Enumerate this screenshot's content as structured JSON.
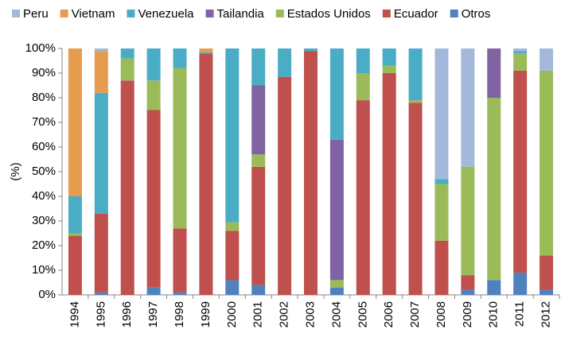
{
  "chart_data": {
    "type": "stacked-bar-100",
    "y_label": "(%)",
    "categories": [
      "1994",
      "1995",
      "1996",
      "1997",
      "1998",
      "1999",
      "2000",
      "2001",
      "2002",
      "2003",
      "2004",
      "2005",
      "2006",
      "2007",
      "2008",
      "2009",
      "2010",
      "2011",
      "2012"
    ],
    "series": [
      {
        "name": "Peru",
        "color": "#a4b8dc",
        "values": [
          0,
          1,
          0,
          0,
          0,
          0,
          0,
          0,
          0,
          0,
          0,
          0,
          0,
          0,
          53,
          48,
          0,
          1,
          9
        ]
      },
      {
        "name": "Vietnam",
        "color": "#e69b4f",
        "values": [
          60,
          17,
          0,
          0,
          0,
          1.5,
          0,
          0,
          0,
          0,
          0,
          0,
          0,
          0,
          0,
          0,
          0,
          0,
          0
        ]
      },
      {
        "name": "Venezuela",
        "color": "#4bacc6",
        "values": [
          15,
          49,
          4,
          13,
          8,
          0.5,
          70.5,
          15,
          11.5,
          1,
          37,
          10,
          7,
          21,
          2,
          0,
          0,
          1,
          0
        ]
      },
      {
        "name": "Tailandia",
        "color": "#8064a2",
        "values": [
          0,
          0,
          0,
          0,
          0,
          0,
          0,
          28,
          0,
          0,
          57,
          0,
          0,
          0,
          0,
          0,
          20,
          0,
          0
        ]
      },
      {
        "name": "Estados Unidos",
        "color": "#9bbb59",
        "values": [
          1,
          0,
          9,
          12,
          65,
          0,
          3.5,
          5,
          0,
          0,
          3,
          11,
          3,
          1,
          23,
          44,
          74,
          7,
          75
        ]
      },
      {
        "name": "Ecuador",
        "color": "#c0504d",
        "values": [
          24,
          32,
          87,
          72,
          26,
          98,
          20,
          48,
          88.5,
          99,
          0,
          79,
          90,
          78,
          22,
          6,
          0,
          82,
          14
        ]
      },
      {
        "name": "Otros",
        "color": "#4f81bd",
        "values": [
          0,
          1,
          0,
          3,
          1,
          0,
          6,
          4,
          0,
          0,
          3,
          0,
          0,
          0,
          0,
          2,
          6,
          9,
          2
        ]
      }
    ],
    "ylim": [
      0,
      100
    ],
    "yticks": [
      {
        "value": 0,
        "label": "0%"
      },
      {
        "value": 10,
        "label": "10%"
      },
      {
        "value": 20,
        "label": "20%"
      },
      {
        "value": 30,
        "label": "30%"
      },
      {
        "value": 40,
        "label": "40%"
      },
      {
        "value": 50,
        "label": "50%"
      },
      {
        "value": 60,
        "label": "60%"
      },
      {
        "value": 70,
        "label": "70%"
      },
      {
        "value": 80,
        "label": "80%"
      },
      {
        "value": 90,
        "label": "90%"
      },
      {
        "value": 100,
        "label": "100%"
      }
    ],
    "legend": "top"
  }
}
